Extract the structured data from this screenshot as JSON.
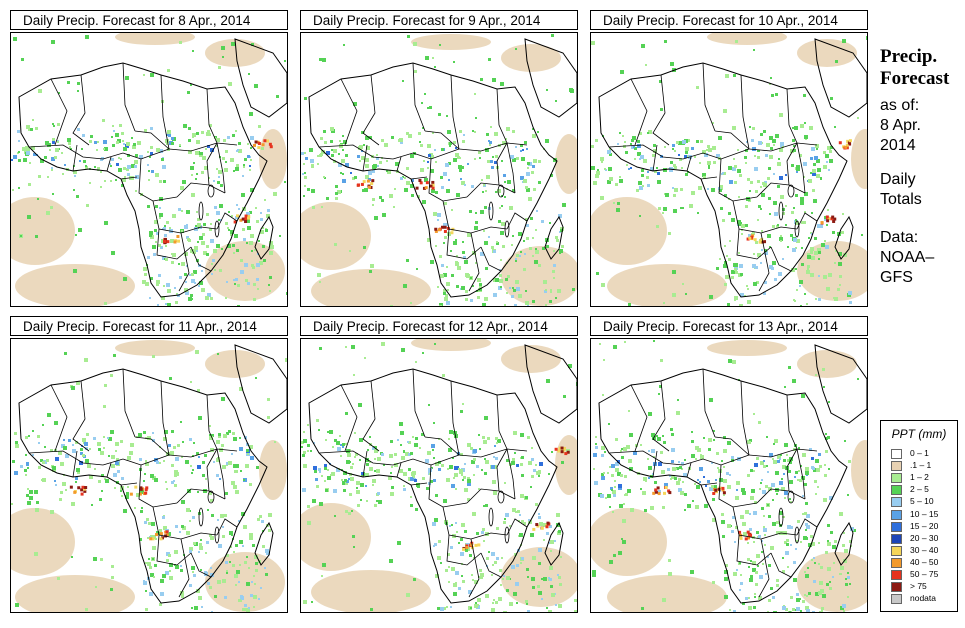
{
  "panels": [
    {
      "title": "Daily Precip. Forecast for  8 Apr., 2014",
      "variant": 0
    },
    {
      "title": "Daily Precip. Forecast for  9 Apr., 2014",
      "variant": 1
    },
    {
      "title": "Daily Precip. Forecast for  10 Apr., 2014",
      "variant": 2
    },
    {
      "title": "Daily Precip. Forecast for  11 Apr., 2014",
      "variant": 3
    },
    {
      "title": "Daily Precip. Forecast for  12 Apr., 2014",
      "variant": 4
    },
    {
      "title": "Daily Precip. Forecast for  13 Apr., 2014",
      "variant": 5
    }
  ],
  "side": {
    "title_line1": "Precip.",
    "title_line2": "Forecast",
    "asof": "as of:",
    "date_line1": "8 Apr.",
    "date_line2": "2014",
    "daily_line1": "Daily",
    "daily_line2": "Totals",
    "data_line1": "Data:",
    "data_line2": "NOAA–",
    "data_line3": "GFS"
  },
  "legend": {
    "title": "PPT (mm)",
    "items": [
      {
        "label": "0 – 1",
        "color": "#ffffff"
      },
      {
        "label": ".1 – 1",
        "color": "#e8d2b3"
      },
      {
        "label": "1 – 2",
        "color": "#a8ec92"
      },
      {
        "label": "2 – 5",
        "color": "#55d255"
      },
      {
        "label": "5 – 10",
        "color": "#98cdf0"
      },
      {
        "label": "10 – 15",
        "color": "#5aa2e6"
      },
      {
        "label": "15 – 20",
        "color": "#2f6fdc"
      },
      {
        "label": "20 – 30",
        "color": "#1d45b8"
      },
      {
        "label": "30 – 40",
        "color": "#f5d65a"
      },
      {
        "label": "40 – 50",
        "color": "#f39a2b"
      },
      {
        "label": "50 – 75",
        "color": "#e6321e"
      },
      {
        "label": "> 75",
        "color": "#8c1a12"
      },
      {
        "label": "nodata",
        "color": "#c8c8c8"
      }
    ]
  }
}
